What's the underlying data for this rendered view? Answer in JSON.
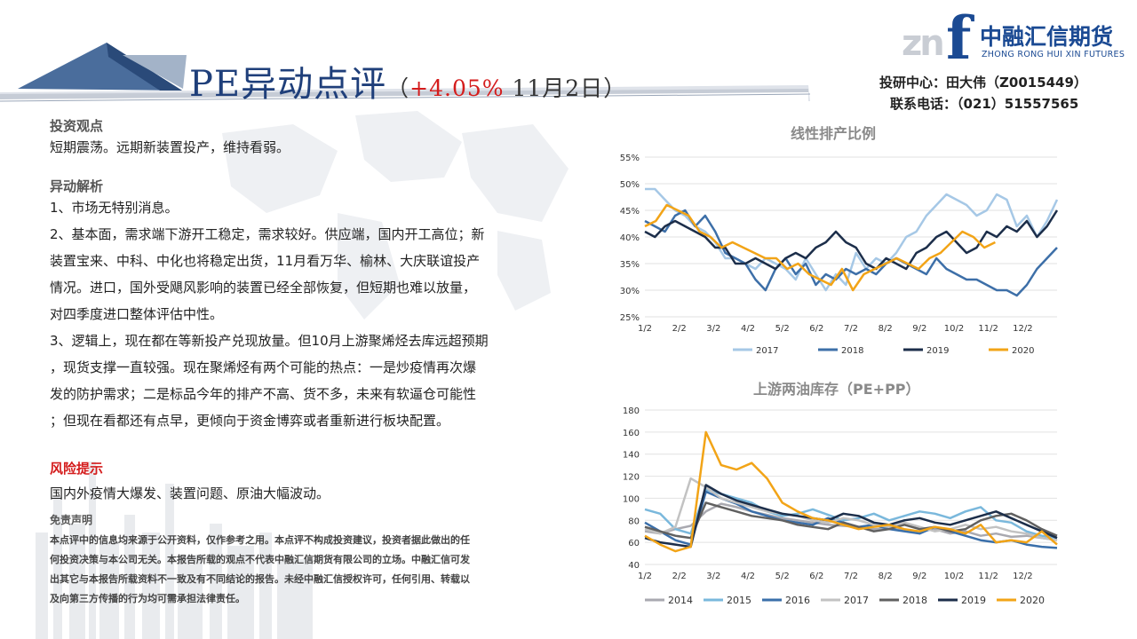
{
  "title": {
    "main": "PE异动点评",
    "open_paren": "（",
    "pct": "+4.05%",
    "date": " 11月2日",
    "close_paren": "）"
  },
  "logo": {
    "mark": "zn",
    "f": "f",
    "cn": "中融汇信期货",
    "en": "ZHONG RONG HUI XIN FUTURES"
  },
  "contact": {
    "line1": "投研中心：田大伟（Z0015449）",
    "line2": "联系电话：（021）51557565"
  },
  "left": {
    "view_title": "投资观点",
    "view_text": "短期震荡。远期新装置投产，维持看弱。",
    "analysis_title": "异动解析",
    "analysis_lines": [
      "1、市场无特别消息。",
      "2、基本面，需求端下游开工稳定，需求较好。供应端，国内开工高位；新",
      "装置宝来、中科、中化也将稳定出货，11月看万华、榆林、大庆联谊投产",
      "情况。进口，国外受飓风影响的装置已经全部恢复，但短期也难以放量，",
      "对四季度进口整体评估中性。",
      "3、逻辑上，现在都在等新投产兑现放量。但10月上游聚烯烃去库远超预期",
      "，现货支撑一直较强。现在聚烯烃有两个可能的热点：一是炒疫情再次爆",
      "发的防护需求；二是标品今年的排产不高、货不多，未来有软逼仓可能性",
      "；但现在看都还有点早，更倾向于资金博弈或者重新进行板块配置。"
    ],
    "risk_title": "风险提示",
    "risk_text": "国内外疫情大爆发、装置问题、原油大幅波动。",
    "disclaimer_title": "免责声明",
    "disclaimer_lines": [
      "本点评中的信息均来源于公开资料，仅作参考之用。本点评不构成投资建议，投资者据此做出的任",
      "何投资决策与本公司无关。本报告所载的观点不代表中融汇信期货有限公司的立场。中融汇信可发",
      "出其它与本报告所载资料不一致及有不同结论的报告。未经中融汇信授权许可，任何引用、转载以",
      "及向第三方传播的行为均可需承担法律责任。"
    ]
  },
  "chart_data": [
    {
      "type": "line",
      "title": "线性排产比例",
      "x_labels": [
        "1/2",
        "2/2",
        "3/2",
        "4/2",
        "5/2",
        "6/2",
        "7/2",
        "8/2",
        "9/2",
        "10/2",
        "11/2",
        "12/2"
      ],
      "y_ticks": [
        "25%",
        "30%",
        "35%",
        "40%",
        "45%",
        "50%",
        "55%"
      ],
      "ylim": [
        25,
        55
      ],
      "grid": true,
      "legend_position": "bottom",
      "series": [
        {
          "name": "2017",
          "color": "#a6c8e6",
          "values": [
            49,
            49,
            47,
            45,
            44,
            42,
            41,
            39,
            36,
            36,
            35,
            34,
            36,
            35,
            34,
            32,
            36,
            33,
            30,
            33,
            31,
            37,
            34,
            36,
            35,
            37,
            40,
            41,
            44,
            46,
            48,
            47,
            46,
            44,
            45,
            48,
            47,
            42,
            44,
            40,
            43,
            47
          ]
        },
        {
          "name": "2018",
          "color": "#3d6fa8",
          "values": [
            43,
            42,
            41,
            44,
            45,
            42,
            44,
            41,
            37,
            36,
            35,
            32,
            30,
            34,
            36,
            33,
            35,
            31,
            33,
            32,
            34,
            33,
            34,
            33,
            35,
            36,
            35,
            34,
            33,
            36,
            34,
            33,
            32,
            32,
            31,
            30,
            30,
            29,
            31,
            34,
            36,
            38
          ]
        },
        {
          "name": "2019",
          "color": "#1c2e4a",
          "values": [
            41,
            40,
            42,
            43,
            42,
            41,
            40,
            38,
            38,
            35,
            35,
            36,
            35,
            34,
            36,
            37,
            36,
            38,
            39,
            41,
            39,
            38,
            35,
            34,
            36,
            35,
            34,
            37,
            38,
            40,
            41,
            39,
            37,
            38,
            41,
            40,
            42,
            41,
            43,
            40,
            42,
            45
          ]
        },
        {
          "name": "2020",
          "color": "#f2a417",
          "values": [
            42,
            43,
            46,
            45,
            44,
            41,
            40,
            38,
            39,
            38,
            37,
            36,
            36,
            34,
            35,
            33,
            32,
            31,
            34,
            30,
            33,
            34,
            35,
            36,
            35,
            34,
            36,
            37,
            39,
            41,
            40,
            38,
            39
          ]
        }
      ]
    },
    {
      "type": "line",
      "title": "上游两油库存（PE+PP）",
      "x_labels": [
        "1/2",
        "2/2",
        "3/2",
        "4/2",
        "5/2",
        "6/2",
        "7/2",
        "8/2",
        "9/2",
        "10/2",
        "11/2",
        "12/2"
      ],
      "y_ticks": [
        "40",
        "60",
        "80",
        "100",
        "120",
        "140",
        "160",
        "180"
      ],
      "ylim": [
        40,
        180
      ],
      "grid": true,
      "legend_position": "bottom",
      "series": [
        {
          "name": "2014",
          "color": "#a9a9b0",
          "values": [
            70,
            68,
            72,
            75,
            88,
            95,
            92,
            88,
            85,
            82,
            80,
            78,
            76,
            75,
            74,
            72,
            73,
            71,
            70,
            72,
            68,
            70,
            66,
            68,
            65,
            66,
            64,
            62
          ]
        },
        {
          "name": "2015",
          "color": "#7ab8dc",
          "values": [
            90,
            86,
            72,
            68,
            108,
            104,
            100,
            96,
            88,
            84,
            86,
            90,
            85,
            80,
            82,
            86,
            80,
            84,
            88,
            86,
            82,
            88,
            92,
            80,
            78,
            70,
            66,
            64
          ]
        },
        {
          "name": "2016",
          "color": "#3a6faa",
          "values": [
            78,
            70,
            62,
            58,
            106,
            100,
            95,
            88,
            84,
            80,
            78,
            76,
            82,
            78,
            74,
            76,
            72,
            70,
            68,
            74,
            70,
            66,
            62,
            60,
            62,
            58,
            56,
            55
          ]
        },
        {
          "name": "2017",
          "color": "#c2c2c2",
          "values": [
            72,
            68,
            74,
            118,
            110,
            100,
            96,
            92,
            88,
            86,
            84,
            80,
            78,
            82,
            80,
            76,
            74,
            78,
            74,
            70,
            72,
            76,
            72,
            74,
            70,
            68,
            64,
            62
          ]
        },
        {
          "name": "2018",
          "color": "#606060",
          "values": [
            74,
            70,
            66,
            64,
            96,
            92,
            88,
            84,
            82,
            80,
            76,
            74,
            72,
            78,
            74,
            70,
            72,
            76,
            72,
            74,
            70,
            72,
            80,
            84,
            86,
            80,
            72,
            66
          ]
        },
        {
          "name": "2019",
          "color": "#1c2e4a",
          "values": [
            64,
            60,
            58,
            56,
            112,
            104,
            98,
            94,
            90,
            86,
            84,
            82,
            80,
            86,
            84,
            78,
            76,
            80,
            82,
            78,
            76,
            80,
            84,
            88,
            82,
            76,
            70,
            64
          ]
        },
        {
          "name": "2020",
          "color": "#f2a417",
          "values": [
            66,
            58,
            52,
            56,
            160,
            130,
            126,
            132,
            118,
            96,
            88,
            82,
            80,
            76,
            72,
            74,
            76,
            72,
            70,
            74,
            72,
            68,
            76,
            60,
            62,
            60,
            70,
            58
          ]
        }
      ]
    }
  ]
}
